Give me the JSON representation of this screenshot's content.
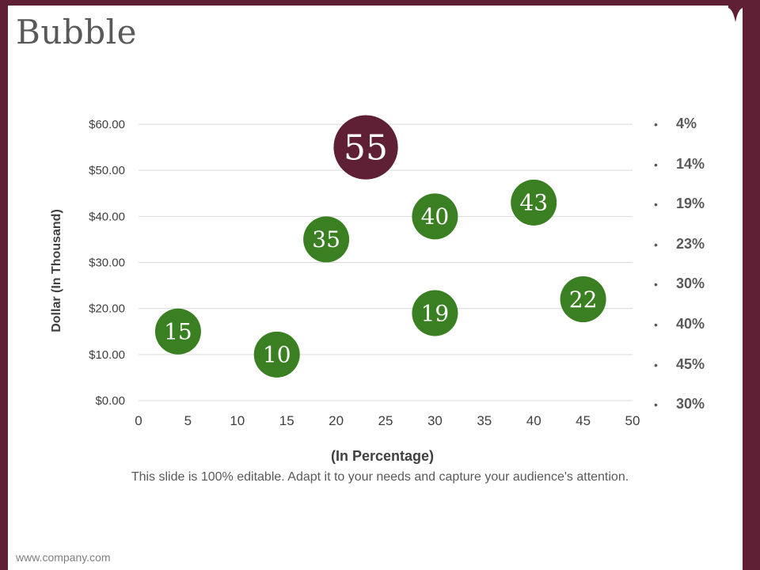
{
  "slide": {
    "title": "Bubble",
    "caption": "This slide is 100% editable. Adapt it to your needs and capture your audience's attention.",
    "footer": "www.company.com"
  },
  "colors": {
    "frame": "#5f2035",
    "green": "#3a7f22",
    "maroon": "#5f2035",
    "grid": "#d9d9d9"
  },
  "legend": [
    "4%",
    "14%",
    "19%",
    "23%",
    "30%",
    "40%",
    "45%",
    "30%"
  ],
  "chart_data": {
    "type": "bubble",
    "title": "",
    "xlabel": "(In Percentage)",
    "ylabel": "Dollar  (In Thousand)",
    "xlim": [
      0,
      50
    ],
    "ylim": [
      0,
      60
    ],
    "xticks": [
      "0",
      "5",
      "10",
      "15",
      "20",
      "25",
      "30",
      "35",
      "40",
      "45",
      "50"
    ],
    "yticks": [
      "$0.00",
      "$10.00",
      "$20.00",
      "$30.00",
      "$40.00",
      "$50.00",
      "$60.00"
    ],
    "grid": true,
    "points": [
      {
        "x": 4,
        "y": 15,
        "label": "15",
        "size": 1,
        "color": "green"
      },
      {
        "x": 14,
        "y": 10,
        "label": "10",
        "size": 1,
        "color": "green"
      },
      {
        "x": 19,
        "y": 35,
        "label": "35",
        "size": 1,
        "color": "green"
      },
      {
        "x": 23,
        "y": 55,
        "label": "55",
        "size": 1.4,
        "color": "maroon"
      },
      {
        "x": 30,
        "y": 40,
        "label": "40",
        "size": 1,
        "color": "green"
      },
      {
        "x": 30,
        "y": 19,
        "label": "19",
        "size": 1,
        "color": "green"
      },
      {
        "x": 40,
        "y": 43,
        "label": "43",
        "size": 1,
        "color": "green"
      },
      {
        "x": 45,
        "y": 22,
        "label": "22",
        "size": 1,
        "color": "green"
      }
    ]
  }
}
